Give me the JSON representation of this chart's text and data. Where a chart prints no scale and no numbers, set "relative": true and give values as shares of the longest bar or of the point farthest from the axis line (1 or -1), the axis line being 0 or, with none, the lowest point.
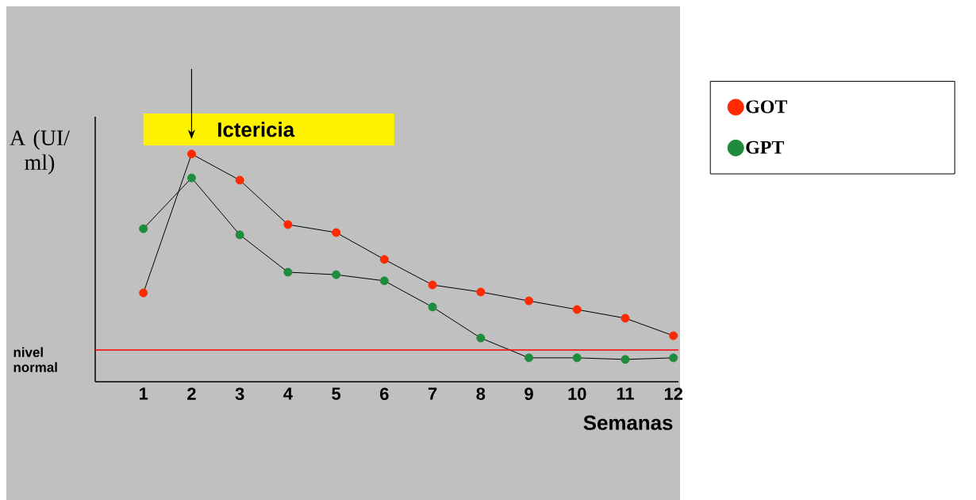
{
  "chart_data": {
    "type": "line",
    "relative": true,
    "ylabel": "A (UI/ ml)",
    "xlabel": "Semanas",
    "categories": [
      "1",
      "2",
      "3",
      "4",
      "5",
      "6",
      "7",
      "8",
      "9",
      "10",
      "11",
      "12"
    ],
    "series": [
      {
        "name": "GOT",
        "color": "#ff2a00",
        "values": [
          0.39,
          1.0,
          0.885,
          0.69,
          0.655,
          0.537,
          0.425,
          0.394,
          0.355,
          0.317,
          0.279,
          0.202
        ]
      },
      {
        "name": "GPT",
        "color": "#1e8c3c",
        "values": [
          0.672,
          0.895,
          0.645,
          0.481,
          0.47,
          0.443,
          0.328,
          0.192,
          0.105,
          0.105,
          0.098,
          0.105
        ]
      }
    ],
    "ref_lines": [
      {
        "axis": "y",
        "value": 0.139,
        "label": "nivel normal",
        "color": "#ff0000"
      }
    ],
    "annotations": [
      {
        "text": "Ictericia",
        "x": "2",
        "y": 1.0
      }
    ],
    "marker": "circle",
    "legend": "right"
  }
}
